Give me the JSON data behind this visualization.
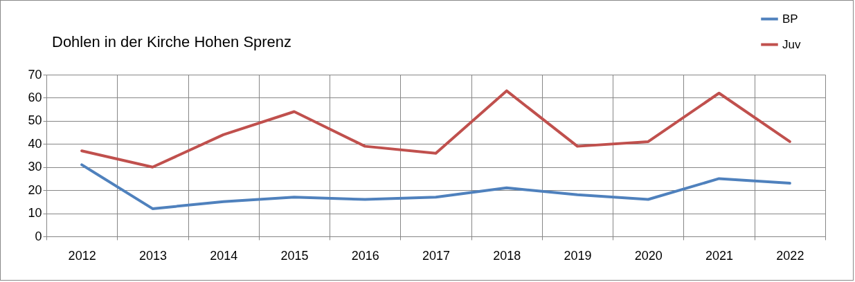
{
  "chart_data": {
    "type": "line",
    "title": "Dohlen in der Kirche Hohen Sprenz",
    "categories": [
      "2012",
      "2013",
      "2014",
      "2015",
      "2016",
      "2017",
      "2018",
      "2019",
      "2020",
      "2021",
      "2022"
    ],
    "series": [
      {
        "name": "BP",
        "color": "#4f81bd",
        "values": [
          31,
          12,
          15,
          17,
          16,
          17,
          21,
          18,
          16,
          25,
          23
        ]
      },
      {
        "name": "Juv",
        "color": "#c0504d",
        "values": [
          37,
          30,
          44,
          54,
          39,
          36,
          63,
          39,
          41,
          62,
          41
        ]
      }
    ],
    "ylim": [
      0,
      70
    ],
    "yticks": [
      0,
      10,
      20,
      30,
      40,
      50,
      60,
      70
    ],
    "grid": true,
    "legend": "top right"
  }
}
